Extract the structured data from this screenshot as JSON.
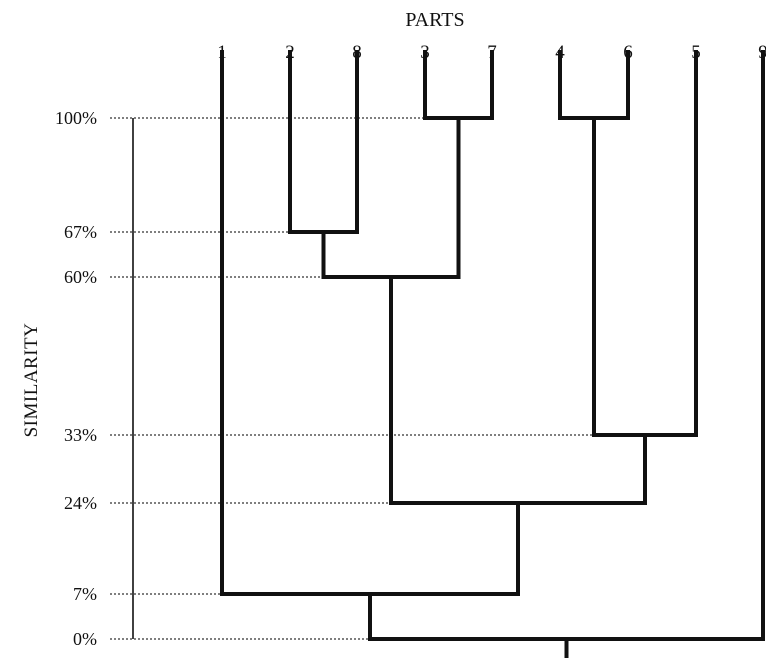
{
  "title": "PARTS",
  "ylabel": "SIMILARITY",
  "parts": [
    "1",
    "2",
    "8",
    "3",
    "7",
    "4",
    "6",
    "5",
    "9"
  ],
  "levels": [
    {
      "value": 100,
      "label": "100%"
    },
    {
      "value": 67,
      "label": "67%"
    },
    {
      "value": 60,
      "label": "60%"
    },
    {
      "value": 33,
      "label": "33%"
    },
    {
      "value": 24,
      "label": "24%"
    },
    {
      "value": 7,
      "label": "7%"
    },
    {
      "value": 0,
      "label": "0%"
    }
  ],
  "merges": [
    {
      "id": "A",
      "left": "3",
      "right": "7",
      "similarity": 100
    },
    {
      "id": "B",
      "left": "4",
      "right": "6",
      "similarity": 100
    },
    {
      "id": "C",
      "left": "2",
      "right": "8",
      "similarity": 67
    },
    {
      "id": "D",
      "left": "C",
      "right": "A",
      "similarity": 60
    },
    {
      "id": "E",
      "left": "B",
      "right": "5",
      "similarity": 33
    },
    {
      "id": "F",
      "left": "D",
      "right": "E",
      "similarity": 24
    },
    {
      "id": "G",
      "left": "1",
      "right": "F",
      "similarity": 7
    },
    {
      "id": "H",
      "left": "G",
      "right": "9",
      "similarity": 0
    }
  ]
}
